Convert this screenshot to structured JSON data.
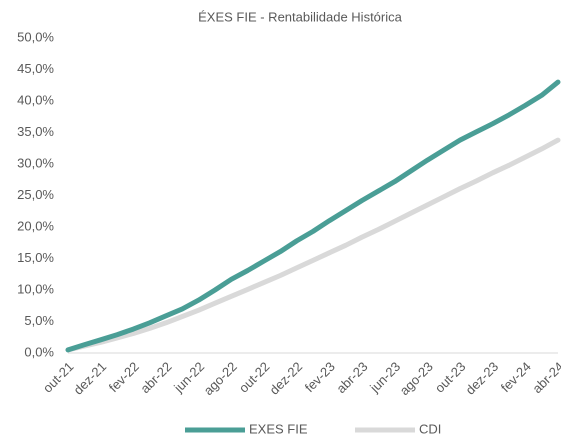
{
  "chart_data": {
    "type": "line",
    "title": "ÉXES FIE - Rentabilidade Histórica",
    "categories": [
      "out-21",
      null,
      "dez-21",
      null,
      "fev-22",
      null,
      "abr-22",
      null,
      "jun-22",
      null,
      "ago-22",
      null,
      "out-22",
      null,
      "dez-22",
      null,
      "fev-23",
      null,
      "abr-23",
      null,
      "jun-23",
      null,
      "ago-23",
      null,
      "out-23",
      null,
      "dez-23",
      null,
      "fev-24",
      null,
      "abr-24"
    ],
    "series": [
      {
        "name": "EXES FIE",
        "color": "#4a9e96",
        "values": [
          0.5,
          1.3,
          2.1,
          2.9,
          3.8,
          4.8,
          5.9,
          7.0,
          8.4,
          10.0,
          11.7,
          13.1,
          14.6,
          16.1,
          17.8,
          19.3,
          21.0,
          22.6,
          24.2,
          25.7,
          27.2,
          28.9,
          30.6,
          32.2,
          33.8,
          35.1,
          36.4,
          37.8,
          39.3,
          40.9,
          43.0
        ]
      },
      {
        "name": "CDI",
        "color": "#d9d9d9",
        "values": [
          0.5,
          1.1,
          1.7,
          2.4,
          3.1,
          3.9,
          4.8,
          5.8,
          6.8,
          7.9,
          9.0,
          10.1,
          11.2,
          12.3,
          13.5,
          14.7,
          15.9,
          17.1,
          18.4,
          19.6,
          20.9,
          22.2,
          23.5,
          24.8,
          26.1,
          27.3,
          28.6,
          29.8,
          31.1,
          32.4,
          33.8
        ]
      }
    ],
    "ylim": [
      0,
      50
    ],
    "yticks": [
      {
        "value": 0,
        "label": "0,0%"
      },
      {
        "value": 5,
        "label": "5,0%"
      },
      {
        "value": 10,
        "label": "10,0%"
      },
      {
        "value": 15,
        "label": "15,0%"
      },
      {
        "value": 20,
        "label": "20,0%"
      },
      {
        "value": 25,
        "label": "25,0%"
      },
      {
        "value": 30,
        "label": "30,0%"
      },
      {
        "value": 35,
        "label": "35,0%"
      },
      {
        "value": 40,
        "label": "40,0%"
      },
      {
        "value": 45,
        "label": "45,0%"
      },
      {
        "value": 50,
        "label": "50,0%"
      }
    ],
    "grid": false
  }
}
